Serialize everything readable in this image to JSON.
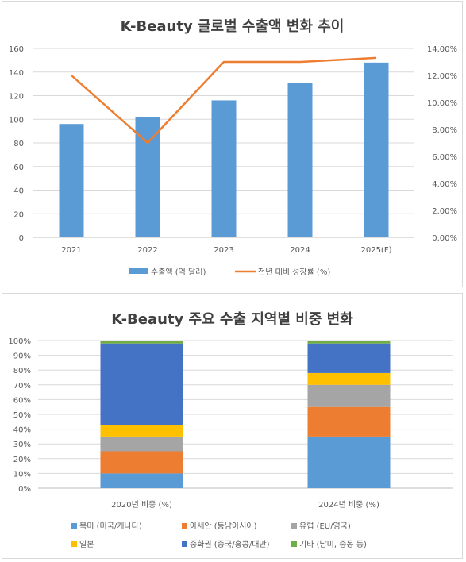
{
  "chart_data": [
    {
      "type": "bar+line",
      "title": "K-Beauty 글로벌 수출액 변화 추이",
      "categories": [
        "2021",
        "2022",
        "2023",
        "2024",
        "2025(F)"
      ],
      "series": [
        {
          "name": "수출액 (억 달러)",
          "type": "bar",
          "axis": "left",
          "color": "#5b9bd5",
          "values": [
            96,
            102,
            116,
            131,
            148
          ]
        },
        {
          "name": "전년 대비 성장률 (%)",
          "type": "line",
          "axis": "right",
          "color": "#ed7d31",
          "values": [
            12.0,
            7.0,
            13.0,
            13.0,
            13.3
          ]
        }
      ],
      "y_left": {
        "min": 0,
        "max": 160,
        "ticks": [
          "0",
          "20",
          "40",
          "60",
          "80",
          "100",
          "120",
          "140",
          "160"
        ]
      },
      "y_right": {
        "min": 0,
        "max": 14,
        "ticks": [
          "0.00%",
          "2.00%",
          "4.00%",
          "6.00%",
          "8.00%",
          "10.00%",
          "12.00%",
          "14.00%"
        ]
      },
      "grid": true,
      "legend": "bottom"
    },
    {
      "type": "stacked-bar-100",
      "title": "K-Beauty 주요 수출 지역별 비중 변화",
      "categories": [
        "2020년 비중 (%)",
        "2024년 비중 (%)"
      ],
      "series": [
        {
          "name": "북미 (미국/캐나다)",
          "color": "#5b9bd5",
          "values": [
            10,
            35
          ]
        },
        {
          "name": "아세안 (동남아시아)",
          "color": "#ed7d31",
          "values": [
            15,
            20
          ]
        },
        {
          "name": "유럽 (EU/영국)",
          "color": "#a5a5a5",
          "values": [
            10,
            15
          ]
        },
        {
          "name": "일본",
          "color": "#ffc000",
          "values": [
            8,
            8
          ]
        },
        {
          "name": "중화권 (중국/홍콩/대만)",
          "color": "#4472c4",
          "values": [
            55,
            20
          ]
        },
        {
          "name": "기타 (남미, 중동 등)",
          "color": "#70ad47",
          "values": [
            2,
            2
          ]
        }
      ],
      "y_axis": {
        "min": 0,
        "max": 100,
        "ticks": [
          "0%",
          "10%",
          "20%",
          "30%",
          "40%",
          "50%",
          "60%",
          "70%",
          "80%",
          "90%",
          "100%"
        ]
      },
      "grid": true,
      "legend": "bottom"
    }
  ]
}
